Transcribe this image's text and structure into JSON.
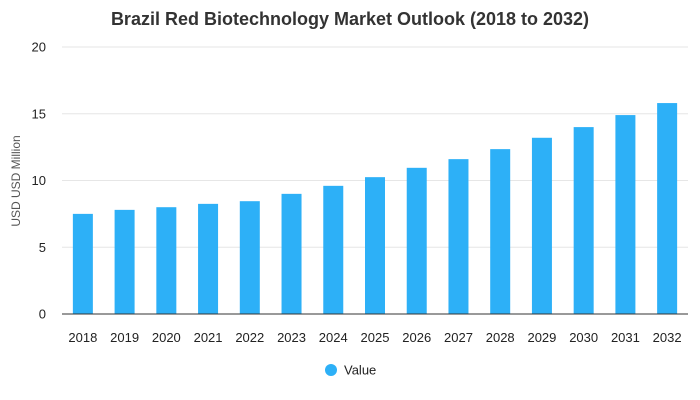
{
  "chart_data": {
    "type": "bar",
    "title": "Brazil Red Biotechnology Market Outlook (2018 to 2032)",
    "xlabel": "",
    "ylabel": "USD USD Million",
    "categories": [
      "2018",
      "2019",
      "2020",
      "2021",
      "2022",
      "2023",
      "2024",
      "2025",
      "2026",
      "2027",
      "2028",
      "2029",
      "2030",
      "2031",
      "2032"
    ],
    "series": [
      {
        "name": "Value",
        "color": "#2db0f7",
        "values": [
          7.5,
          7.8,
          8.0,
          8.25,
          8.45,
          9.0,
          9.6,
          10.25,
          10.95,
          11.6,
          12.35,
          13.2,
          14.0,
          14.9,
          15.8
        ]
      }
    ],
    "ylim": [
      0,
      20
    ],
    "yticks": [
      0,
      5,
      10,
      15,
      20
    ],
    "grid": true,
    "legend_position": "bottom-center"
  }
}
